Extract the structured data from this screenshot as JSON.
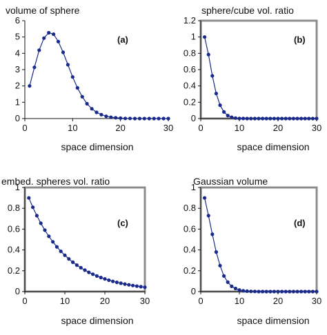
{
  "chart_data": [
    {
      "type": "line",
      "title": "volume of sphere",
      "panel_label": "(a)",
      "xlabel": "space dimension",
      "ylabel": "",
      "xlim": [
        0,
        30
      ],
      "ylim": [
        0,
        6
      ],
      "x_ticks": [
        0,
        10,
        20,
        30
      ],
      "x_tick_labels": [
        "0",
        "10",
        "20",
        "30"
      ],
      "y_ticks": [
        0,
        1,
        2,
        3,
        4,
        5,
        6
      ],
      "y_tick_labels": [
        "0",
        "1",
        "2",
        "3",
        "4",
        "5",
        "6"
      ],
      "grid": false,
      "frame_color": "",
      "color": "#1a2a8a",
      "x": [
        1,
        2,
        3,
        4,
        5,
        6,
        7,
        8,
        9,
        10,
        11,
        12,
        13,
        14,
        15,
        16,
        17,
        18,
        19,
        20,
        21,
        22,
        23,
        24,
        25,
        26,
        27,
        28,
        29,
        30
      ],
      "y": [
        2.0,
        3.14,
        4.19,
        4.93,
        5.26,
        5.17,
        4.72,
        4.06,
        3.3,
        2.55,
        1.88,
        1.34,
        0.91,
        0.6,
        0.38,
        0.24,
        0.14,
        0.08,
        0.05,
        0.03,
        0.01,
        0.01,
        0,
        0,
        0,
        0,
        0,
        0,
        0,
        0
      ]
    },
    {
      "type": "line",
      "title": "sphere/cube vol. ratio",
      "panel_label": "(b)",
      "xlabel": "space dimension",
      "ylabel": "",
      "xlim": [
        0,
        30
      ],
      "ylim": [
        0,
        1.2
      ],
      "x_ticks": [
        0,
        10,
        20,
        30
      ],
      "x_tick_labels": [
        "0",
        "10",
        "20",
        "30"
      ],
      "y_ticks": [
        0,
        0.2,
        0.4,
        0.6,
        0.8,
        1,
        1.2
      ],
      "y_tick_labels": [
        "0",
        "0.2",
        "0.4",
        "0.6",
        "0.8",
        "1",
        "1.2"
      ],
      "grid": false,
      "frame_color": "#8c8c8c",
      "color": "#1a2a8a",
      "x": [
        1,
        2,
        3,
        4,
        5,
        6,
        7,
        8,
        9,
        10,
        11,
        12,
        13,
        14,
        15,
        16,
        17,
        18,
        19,
        20,
        21,
        22,
        23,
        24,
        25,
        26,
        27,
        28,
        29,
        30
      ],
      "y": [
        1.0,
        0.785,
        0.524,
        0.308,
        0.164,
        0.081,
        0.037,
        0.016,
        0.006,
        0.002,
        0.001,
        0,
        0,
        0,
        0,
        0,
        0,
        0,
        0,
        0,
        0,
        0,
        0,
        0,
        0,
        0,
        0,
        0,
        0,
        0
      ]
    },
    {
      "type": "line",
      "title": "embed. spheres vol. ratio",
      "panel_label": "(c)",
      "xlabel": "space dimension",
      "ylabel": "",
      "xlim": [
        0,
        30
      ],
      "ylim": [
        0,
        1
      ],
      "x_ticks": [
        0,
        10,
        20,
        30
      ],
      "x_tick_labels": [
        "0",
        "10",
        "20",
        "30"
      ],
      "y_ticks": [
        0,
        0.2,
        0.4,
        0.6,
        0.8,
        1
      ],
      "y_tick_labels": [
        "0",
        "0.2",
        "0.4",
        "0.6",
        "0.8",
        "1"
      ],
      "grid": false,
      "frame_color": "#8c8c8c",
      "color": "#1a2a8a",
      "x": [
        1,
        2,
        3,
        4,
        5,
        6,
        7,
        8,
        9,
        10,
        11,
        12,
        13,
        14,
        15,
        16,
        17,
        18,
        19,
        20,
        21,
        22,
        23,
        24,
        25,
        26,
        27,
        28,
        29,
        30
      ],
      "y": [
        0.9,
        0.81,
        0.729,
        0.656,
        0.59,
        0.531,
        0.478,
        0.43,
        0.387,
        0.349,
        0.314,
        0.282,
        0.254,
        0.229,
        0.206,
        0.185,
        0.167,
        0.15,
        0.135,
        0.122,
        0.109,
        0.098,
        0.089,
        0.08,
        0.072,
        0.065,
        0.058,
        0.052,
        0.047,
        0.042
      ]
    },
    {
      "type": "line",
      "title": "Gaussian volume",
      "panel_label": "(d)",
      "xlabel": "space dimension",
      "ylabel": "",
      "xlim": [
        0,
        30
      ],
      "ylim": [
        0,
        1
      ],
      "x_ticks": [
        0,
        10,
        20,
        30
      ],
      "x_tick_labels": [
        "0",
        "10",
        "20",
        "30"
      ],
      "y_ticks": [
        0,
        0.2,
        0.4,
        0.6,
        0.8,
        1
      ],
      "y_tick_labels": [
        "0",
        "0.2",
        "0.4",
        "0.6",
        "0.8",
        "1"
      ],
      "grid": false,
      "frame_color": "#8c8c8c",
      "color": "#1a2a8a",
      "x": [
        1,
        2,
        3,
        4,
        5,
        6,
        7,
        8,
        9,
        10,
        11,
        12,
        13,
        14,
        15,
        16,
        17,
        18,
        19,
        20,
        21,
        22,
        23,
        24,
        25,
        26,
        27,
        28,
        29,
        30
      ],
      "y": [
        0.9,
        0.73,
        0.55,
        0.38,
        0.25,
        0.15,
        0.09,
        0.05,
        0.03,
        0.015,
        0.008,
        0.004,
        0.002,
        0.001,
        0,
        0,
        0,
        0,
        0,
        0,
        0,
        0,
        0,
        0,
        0,
        0,
        0,
        0,
        0,
        0
      ]
    }
  ]
}
